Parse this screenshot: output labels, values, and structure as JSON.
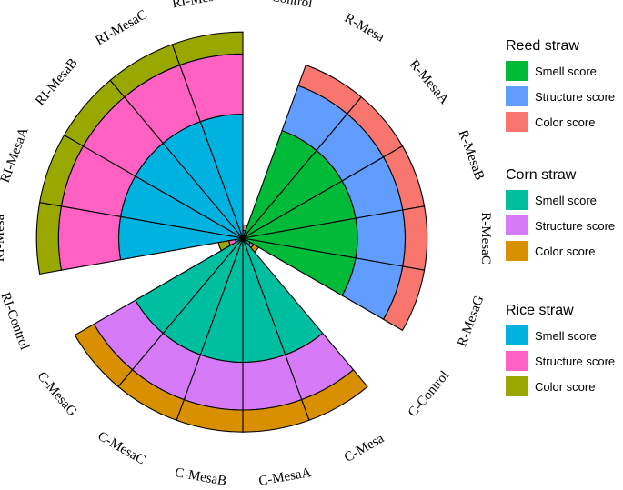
{
  "chart_data": {
    "type": "stacked-polar-bar",
    "title": "",
    "categories": [
      "R-Control",
      "R-Mesa",
      "R-MesaA",
      "R-MesaB",
      "R-MesaC",
      "R-MesaG",
      "C-Control",
      "C-Mesa",
      "C-MesaA",
      "C-MesaB",
      "C-MesaC",
      "C-MesaG",
      "RI-Control",
      "RI-Mesa",
      "RI-MesaA",
      "RI-MesaB",
      "RI-MesaC",
      "RI-MesaG"
    ],
    "groups": [
      {
        "name": "Reed straw",
        "categories": [
          "R-Control",
          "R-Mesa",
          "R-MesaA",
          "R-MesaB",
          "R-MesaC",
          "R-MesaG"
        ],
        "series": [
          {
            "name": "Smell score",
            "color": "#00BA38",
            "values": [
              0.2,
              12,
              12,
              12,
              12,
              12
            ]
          },
          {
            "name": "Structure score",
            "color": "#619CFF",
            "values": [
              0.6,
              5,
              5,
              5,
              5,
              5
            ]
          },
          {
            "name": "Color score",
            "color": "#F8766D",
            "values": [
              0.6,
              2.3,
              2.3,
              2.3,
              2.3,
              2.3
            ]
          }
        ]
      },
      {
        "name": "Corn straw",
        "categories": [
          "C-Control",
          "C-Mesa",
          "C-MesaA",
          "C-MesaB",
          "C-MesaC",
          "C-MesaG"
        ],
        "series": [
          {
            "name": "Smell score",
            "color": "#00BFA0",
            "values": [
              0.9,
              13,
              13,
              13,
              13,
              13
            ]
          },
          {
            "name": "Structure score",
            "color": "#D67AF7",
            "values": [
              0.4,
              5,
              5,
              5,
              5,
              5
            ]
          },
          {
            "name": "Color score",
            "color": "#D89000",
            "values": [
              0.6,
              2.3,
              2.3,
              2.3,
              2.3,
              2.3
            ]
          }
        ]
      },
      {
        "name": "Rice straw",
        "categories": [
          "RI-Control",
          "RI-Mesa",
          "RI-MesaA",
          "RI-MesaB",
          "RI-MesaC",
          "RI-MesaG"
        ],
        "series": [
          {
            "name": "Smell score",
            "color": "#00B2DF",
            "values": [
              0.8,
              13,
              13,
              13,
              13,
              13
            ]
          },
          {
            "name": "Structure score",
            "color": "#FF61C3",
            "values": [
              0.7,
              6.3,
              6.3,
              6.3,
              6.3,
              6.3
            ]
          },
          {
            "name": "Color score",
            "color": "#99A800",
            "values": [
              1.1,
              2.3,
              2.3,
              2.3,
              2.3,
              2.3
            ]
          }
        ]
      }
    ],
    "legend": [
      {
        "title": "Reed straw",
        "items": [
          {
            "label": "Smell score",
            "color": "#00BA38"
          },
          {
            "label": "Structure score",
            "color": "#619CFF"
          },
          {
            "label": "Color score",
            "color": "#F8766D"
          }
        ]
      },
      {
        "title": "Corn straw",
        "items": [
          {
            "label": "Smell score",
            "color": "#00BFA0"
          },
          {
            "label": "Structure score",
            "color": "#D67AF7"
          },
          {
            "label": "Color score",
            "color": "#D89000"
          }
        ]
      },
      {
        "title": "Rice straw",
        "items": [
          {
            "label": "Smell score",
            "color": "#00B2DF"
          },
          {
            "label": "Structure score",
            "color": "#FF61C3"
          },
          {
            "label": "Color score",
            "color": "#99A800"
          }
        ]
      }
    ],
    "legend_position": "right"
  }
}
